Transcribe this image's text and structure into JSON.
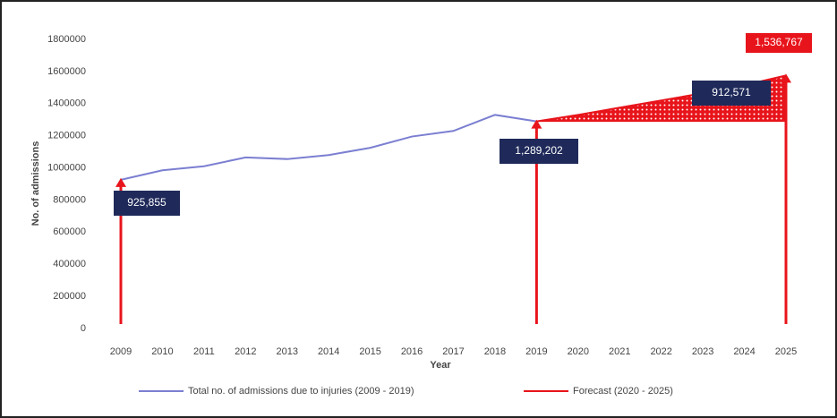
{
  "chart_data": {
    "type": "line",
    "categories": [
      "2009",
      "2010",
      "2011",
      "2012",
      "2013",
      "2014",
      "2015",
      "2016",
      "2017",
      "2018",
      "2019",
      "2020",
      "2021",
      "2022",
      "2023",
      "2024",
      "2025"
    ],
    "series": [
      {
        "name": "Total no. of admissions due to injuries (2009 - 2019)",
        "color": "#7b7fd1",
        "values": [
          925855,
          985000,
          1010000,
          1065000,
          1055000,
          1080000,
          1125000,
          1195000,
          1230000,
          1330000,
          1289202,
          null,
          null,
          null,
          null,
          null,
          null
        ]
      },
      {
        "name": "Forecast (2020 - 2025)",
        "color": "#e8141b",
        "values": [
          null,
          null,
          null,
          null,
          null,
          null,
          null,
          null,
          null,
          null,
          1289202,
          1330000,
          1375000,
          1420000,
          1465000,
          1515000,
          1575000
        ]
      }
    ],
    "annotations": [
      "925,855",
      "1,289,202",
      "912,571",
      "1,536,767"
    ],
    "xlabel": "Year",
    "ylabel": "No. of admissions",
    "ylim": [
      0,
      1800000
    ],
    "yticks": [
      0,
      200000,
      400000,
      600000,
      800000,
      1000000,
      1200000,
      1400000,
      1600000,
      1800000
    ],
    "grid": false
  }
}
